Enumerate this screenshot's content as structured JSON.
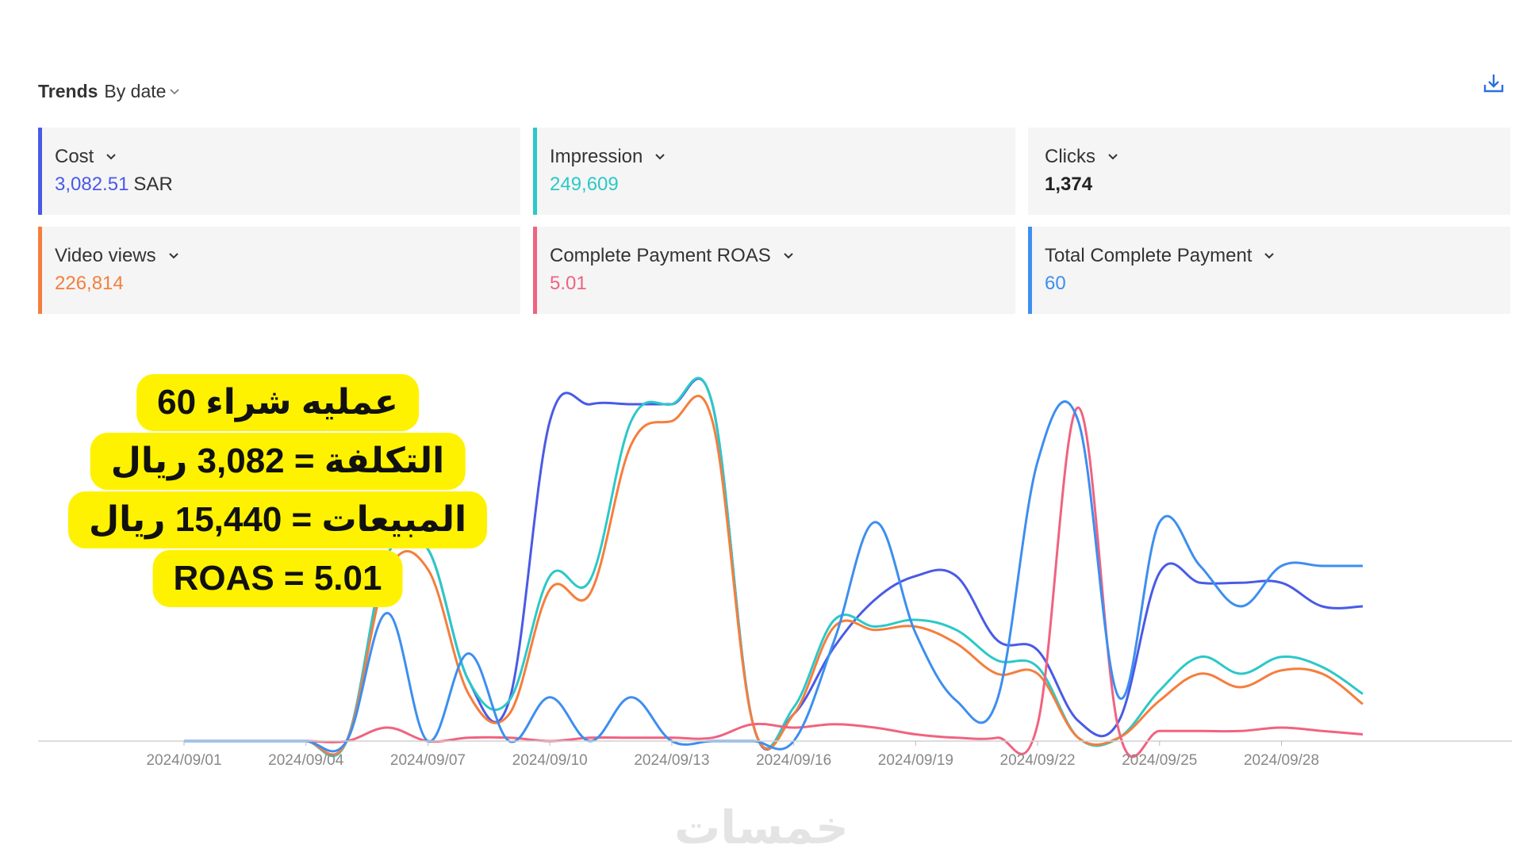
{
  "header": {
    "title_bold": "Trends",
    "title_rest": "By date"
  },
  "icons": {
    "download": "download-icon",
    "chevron": "chevron-down-icon"
  },
  "cards": [
    {
      "name": "Cost",
      "value": "3,082.51",
      "unit": "SAR",
      "color": "#4a5ae6",
      "value_color": "#4a5ae6"
    },
    {
      "name": "Impression",
      "value": "249,609",
      "unit": "",
      "color": "#2cc8c8",
      "value_color": "#2cc8c8"
    },
    {
      "name": "Clicks",
      "value": "1,374",
      "unit": "",
      "color": "#f5f5f5",
      "value_color": "#222222"
    },
    {
      "name": "Video views",
      "value": "226,814",
      "unit": "",
      "color": "#f57e3d",
      "value_color": "#f57e3d"
    },
    {
      "name": "Complete Payment ROAS",
      "value": "5.01",
      "unit": "",
      "color": "#f0637f",
      "value_color": "#f0637f"
    },
    {
      "name": "Total Complete Payment",
      "value": "60",
      "unit": "",
      "color": "#3d8ef0",
      "value_color": "#3d8ef0"
    }
  ],
  "annotation": {
    "lines": [
      "60 عمليه شراء",
      "التكلفة = 3,082 ريال",
      "المبيعات = 15,440 ريال",
      "ROAS = 5.01"
    ]
  },
  "watermark": "خمسات",
  "chart_data": {
    "type": "line",
    "x": [
      "2024/09/01",
      "2024/09/02",
      "2024/09/03",
      "2024/09/04",
      "2024/09/05",
      "2024/09/06",
      "2024/09/07",
      "2024/09/08",
      "2024/09/09",
      "2024/09/10",
      "2024/09/11",
      "2024/09/12",
      "2024/09/13",
      "2024/09/14",
      "2024/09/15",
      "2024/09/16",
      "2024/09/17",
      "2024/09/18",
      "2024/09/19",
      "2024/09/20",
      "2024/09/21",
      "2024/09/22",
      "2024/09/23",
      "2024/09/24",
      "2024/09/25",
      "2024/09/26",
      "2024/09/27",
      "2024/09/28",
      "2024/09/29",
      "2024/09/30"
    ],
    "xticks": [
      "2024/09/01",
      "2024/09/04",
      "2024/09/07",
      "2024/09/10",
      "2024/09/13",
      "2024/09/16",
      "2024/09/19",
      "2024/09/22",
      "2024/09/25",
      "2024/09/28"
    ],
    "ylim": [
      0,
      1
    ],
    "grid": false,
    "series": [
      {
        "metric": "cost",
        "color": "#4a5ae6",
        "values": [
          0,
          0,
          0,
          0,
          0,
          0.55,
          0.57,
          0.18,
          0.12,
          0.95,
          1.0,
          1.0,
          1.0,
          1.0,
          0.05,
          0.08,
          0.28,
          0.42,
          0.49,
          0.49,
          0.3,
          0.27,
          0.06,
          0.06,
          0.5,
          0.47,
          0.47,
          0.47,
          0.4,
          0.4
        ]
      },
      {
        "metric": "impression",
        "color": "#2cc8c8",
        "values": [
          0,
          0,
          0,
          0,
          0,
          0.55,
          0.57,
          0.18,
          0.12,
          0.49,
          0.48,
          0.95,
          1.0,
          1.0,
          0.05,
          0.1,
          0.36,
          0.34,
          0.36,
          0.33,
          0.24,
          0.22,
          0.01,
          0.01,
          0.15,
          0.25,
          0.2,
          0.25,
          0.22,
          0.14
        ]
      },
      {
        "metric": "video_views",
        "color": "#f57e3d",
        "values": [
          0,
          0,
          0,
          0,
          0,
          0.5,
          0.51,
          0.14,
          0.08,
          0.45,
          0.44,
          0.88,
          0.95,
          0.95,
          0.05,
          0.08,
          0.34,
          0.33,
          0.34,
          0.29,
          0.2,
          0.2,
          0.01,
          0.01,
          0.12,
          0.2,
          0.16,
          0.21,
          0.2,
          0.11
        ]
      },
      {
        "metric": "roas",
        "color": "#f0637f",
        "values": [
          0,
          0,
          0,
          0,
          0,
          0.04,
          0.0,
          0.01,
          0.01,
          0.0,
          0.01,
          0.01,
          0.01,
          0.01,
          0.05,
          0.04,
          0.05,
          0.04,
          0.02,
          0.01,
          0.01,
          0.05,
          0.99,
          0.03,
          0.03,
          0.03,
          0.03,
          0.04,
          0.03,
          0.02
        ]
      },
      {
        "metric": "total_complete_payment",
        "color": "#3d8ef0",
        "values": [
          0,
          0,
          0,
          0,
          0,
          0.38,
          0.0,
          0.26,
          0.0,
          0.13,
          0.0,
          0.13,
          0.0,
          0.0,
          0.0,
          0.0,
          0.3,
          0.65,
          0.32,
          0.12,
          0.12,
          0.83,
          0.95,
          0.13,
          0.65,
          0.52,
          0.4,
          0.52,
          0.52,
          0.52
        ]
      }
    ]
  }
}
